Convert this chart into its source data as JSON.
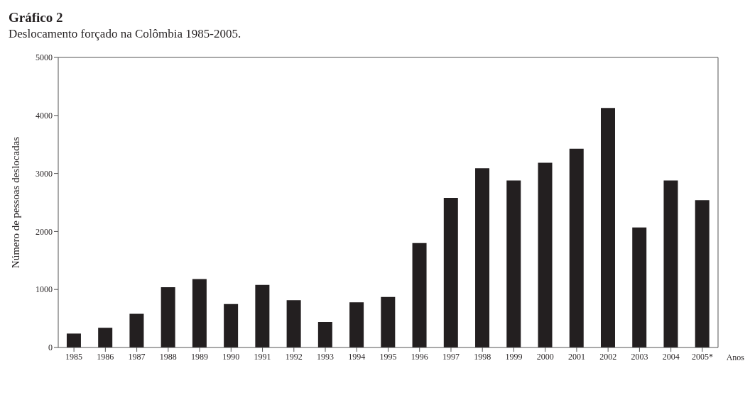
{
  "chart_data": {
    "type": "bar",
    "title": "Gráfico 2",
    "subtitle": "Deslocamento forçado na Colômbia 1985-2005.",
    "xlabel": "Anos",
    "ylabel": "Número de pessoas deslocadas",
    "categories": [
      "1985",
      "1986",
      "1987",
      "1988",
      "1989",
      "1990",
      "1991",
      "1992",
      "1993",
      "1994",
      "1995",
      "1996",
      "1997",
      "1998",
      "1999",
      "2000",
      "2001",
      "2002",
      "2003",
      "2004",
      "2005*"
    ],
    "values": [
      240,
      340,
      580,
      1040,
      1180,
      750,
      1080,
      815,
      440,
      780,
      870,
      1800,
      2580,
      3090,
      2880,
      3185,
      3425,
      4130,
      2070,
      2880,
      2540
    ],
    "color": "#231f20",
    "ylim": [
      0,
      5000
    ],
    "yticks": [
      0,
      1000,
      2000,
      3000,
      4000,
      5000
    ],
    "grid": false
  }
}
